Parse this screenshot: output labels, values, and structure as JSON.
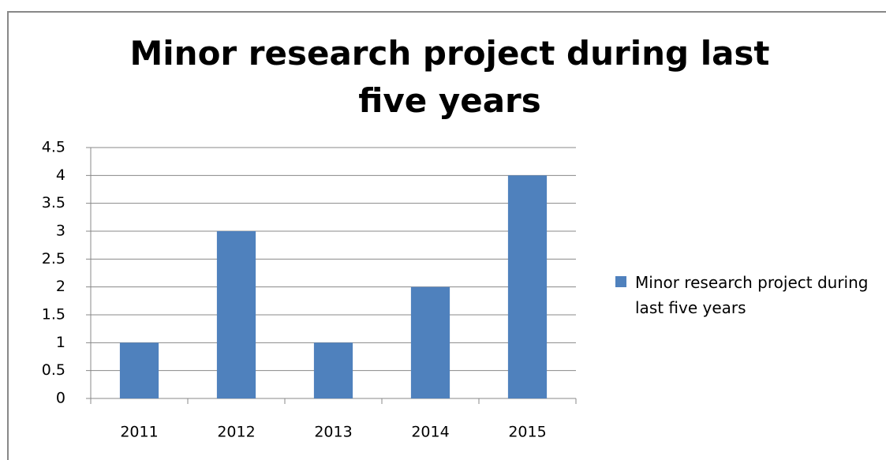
{
  "chart_data": {
    "type": "bar",
    "title": "Minor research project during last five years",
    "categories": [
      "2011",
      "2012",
      "2013",
      "2014",
      "2015"
    ],
    "series": [
      {
        "name": "Minor research project during last five years",
        "color": "#4f81bd",
        "values": [
          1,
          3,
          1,
          2,
          4
        ]
      }
    ],
    "ylim": [
      0,
      4.5
    ],
    "yticks": [
      0,
      0.5,
      1,
      1.5,
      2,
      2.5,
      3,
      3.5,
      4,
      4.5
    ],
    "grid": true,
    "legend": "right"
  }
}
